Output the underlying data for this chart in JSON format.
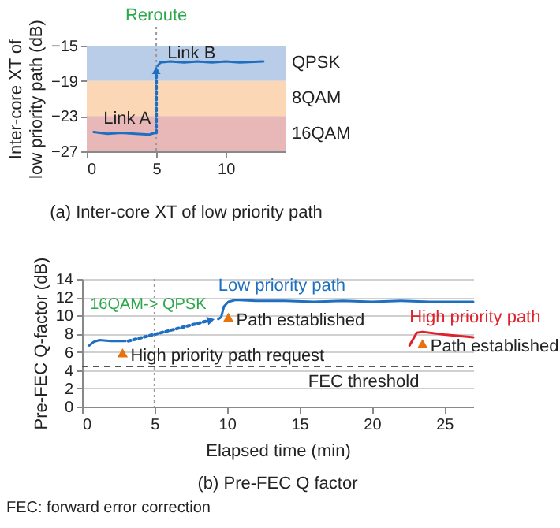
{
  "chart_data": [
    {
      "type": "line",
      "title": "(a) Inter-core XT of low priority path",
      "ylabel": "Inter-core XT of low priority path (dB)",
      "xlim": [
        0,
        14.3
      ],
      "xticks": [
        0,
        5,
        10
      ],
      "ylim": [
        -27,
        -15
      ],
      "yticks": [
        -27,
        -23,
        -19,
        -15
      ],
      "bands": [
        {
          "axis": "y",
          "from": -19,
          "to": -15,
          "label": "QPSK",
          "color": "#b9cde8"
        },
        {
          "axis": "y",
          "from": -23,
          "to": -19,
          "label": "8QAM",
          "color": "#fbd7b5"
        },
        {
          "axis": "y",
          "from": -27,
          "to": -23,
          "label": "16QAM",
          "color": "#e8b8b8"
        }
      ],
      "ref_lines": [
        {
          "axis": "x",
          "value": 5,
          "label": "Reroute",
          "color": "#999999",
          "line_style": "dotted"
        }
      ],
      "annotations": [
        {
          "text": "Link A",
          "x": 1.2,
          "y": -23.3
        },
        {
          "text": "Link B",
          "x": 5.8,
          "y": -15.9
        }
      ],
      "series": [
        {
          "color": "#1f6fc0",
          "x": [
            0.5,
            1.5,
            2.5,
            3.5,
            4.5,
            4.9
          ],
          "values": [
            -24.8,
            -25.0,
            -24.9,
            -25.0,
            -25.1,
            -24.9
          ]
        },
        {
          "color": "#1f6fc0",
          "line_style": "dotted",
          "x": [
            5,
            5
          ],
          "values": [
            -24.9,
            -17.8
          ]
        },
        {
          "color": "#1f6fc0",
          "x": [
            5.1,
            5.3,
            6,
            7,
            8,
            9,
            10,
            11,
            12.7
          ],
          "values": [
            -17.3,
            -16.9,
            -16.8,
            -16.9,
            -16.8,
            -16.9,
            -16.8,
            -16.9,
            -16.8
          ]
        }
      ]
    },
    {
      "type": "line",
      "title": "(b) Pre-FEC Q factor",
      "xlabel": "Elapsed time (min)",
      "ylabel": "Pre-FEC Q-factor (dB)",
      "xlim": [
        0,
        27
      ],
      "xticks": [
        0,
        5,
        10,
        15,
        20,
        25
      ],
      "ylim": [
        0,
        14
      ],
      "yticks": [
        0,
        2,
        4,
        6,
        8,
        10,
        12,
        14
      ],
      "grid": "y",
      "ref_lines": [
        {
          "axis": "x",
          "value": 5,
          "color": "#999999",
          "line_style": "dotted"
        },
        {
          "axis": "y",
          "value": 4.4,
          "label": "FEC threshold",
          "color": "#555555",
          "line_style": "dashed"
        }
      ],
      "annotations": [
        {
          "text": "16QAM-> QPSK",
          "x": 8.9,
          "y": 9.5
        },
        {
          "text": "High priority path request",
          "x": 2.8,
          "y": 5.9
        },
        {
          "text": "Path established",
          "x": 10.1,
          "y": 9.8
        },
        {
          "text": "Path established",
          "x": 23.5,
          "y": 6.9
        },
        "FEC: forward error correction"
      ],
      "series": [
        {
          "color": "#1f6fc0",
          "x": [
            0.5,
            0.8,
            1.2,
            2,
            3
          ],
          "values": [
            6.7,
            7.1,
            7.3,
            7.2,
            7.2
          ]
        },
        {
          "color": "#1f6fc0",
          "line_style": "dotted",
          "x": [
            3.2,
            8.9
          ],
          "values": [
            7.2,
            9.5
          ]
        },
        {
          "name": "Low priority path",
          "color": "#1f6fc0",
          "x": [
            9.4,
            9.6,
            9.8,
            10.1,
            10.6,
            12,
            14,
            16,
            18,
            20,
            22,
            24,
            27
          ],
          "values": [
            9.6,
            9.8,
            11.0,
            11.5,
            11.7,
            11.6,
            11.6,
            11.5,
            11.6,
            11.5,
            11.6,
            11.5,
            11.5
          ]
        },
        {
          "name": "High priority path",
          "color": "#e0202a",
          "x": [
            22.6,
            23.1,
            23.5,
            25,
            27
          ],
          "values": [
            6.7,
            8.1,
            8.2,
            7.9,
            7.6
          ]
        },
        {
          "type": "scatter",
          "color": "#e8720c",
          "marker": "triangle",
          "x": [
            2.8,
            10.1,
            23.5
          ],
          "values": [
            5.9,
            9.8,
            6.9
          ]
        }
      ]
    }
  ]
}
